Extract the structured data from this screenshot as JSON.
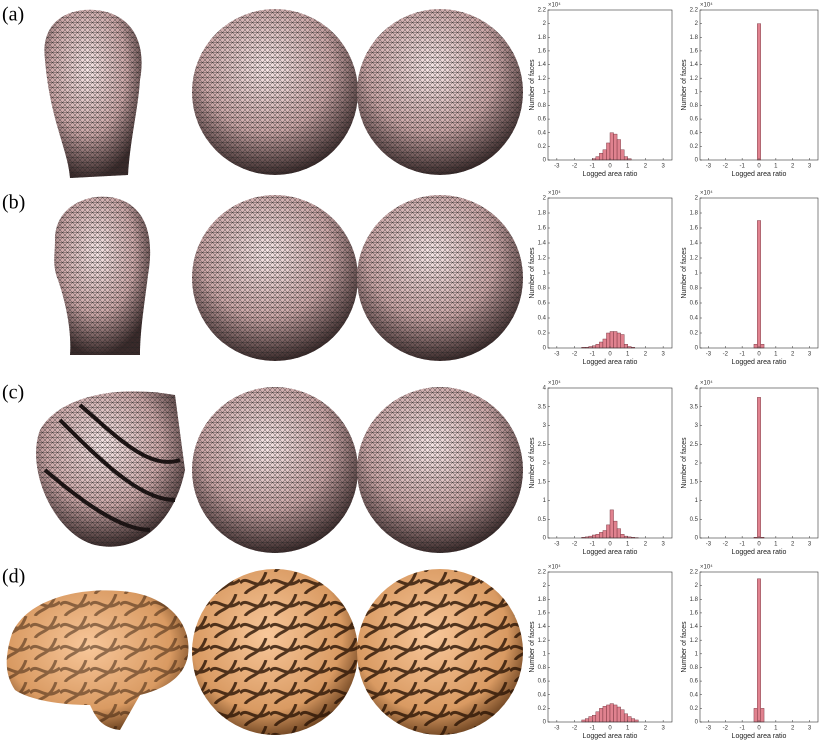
{
  "panel_labels": [
    "(a)",
    "(b)",
    "(c)",
    "(d)"
  ],
  "chart_data": [
    {
      "type": "histogram",
      "xlabel": "Logged area ratio",
      "ylabel": "Number of faces",
      "y_multiplier": "×10⁴",
      "color": "#e0828f",
      "bins": [
        -1.6,
        -1.4,
        -1.2,
        -1.0,
        -0.8,
        -0.6,
        -0.4,
        -0.2,
        0,
        0.2,
        0.4,
        0.6,
        0.8,
        1.0,
        1.2,
        1.4,
        1.6
      ],
      "counts": [
        0,
        0,
        0,
        0.02,
        0.05,
        0.1,
        0.15,
        0.25,
        0.4,
        0.38,
        0.3,
        0.15,
        0.05,
        0.02,
        0,
        0
      ],
      "xlim": [
        -3.5,
        3.5
      ],
      "xticks": [
        -3,
        -2,
        -1,
        0,
        1,
        2,
        3
      ],
      "ylim": [
        0,
        2.2
      ],
      "yticks": [
        0,
        0.2,
        0.4,
        0.6,
        0.8,
        1,
        1.2,
        1.4,
        1.6,
        1.8,
        2,
        2.2
      ]
    },
    {
      "type": "histogram",
      "xlabel": "Logged area ratio",
      "ylabel": "Number of faces",
      "y_multiplier": "×10⁴",
      "color": "#e0828f",
      "bins": [
        -0.3,
        -0.1,
        0.1,
        0.3
      ],
      "counts": [
        0,
        2.0,
        0
      ],
      "xlim": [
        -3.5,
        3.5
      ],
      "xticks": [
        -3,
        -2,
        -1,
        0,
        1,
        2,
        3
      ],
      "ylim": [
        0,
        2.2
      ],
      "yticks": [
        0,
        0.2,
        0.4,
        0.6,
        0.8,
        1,
        1.2,
        1.4,
        1.6,
        1.8,
        2,
        2.2
      ]
    },
    {
      "type": "histogram",
      "xlabel": "Logged area ratio",
      "ylabel": "Number of faces",
      "y_multiplier": "×10⁴",
      "color": "#e0828f",
      "bins": [
        -1.6,
        -1.4,
        -1.2,
        -1.0,
        -0.8,
        -0.6,
        -0.4,
        -0.2,
        0,
        0.2,
        0.4,
        0.6,
        0.8,
        1.0,
        1.2,
        1.4,
        1.6
      ],
      "counts": [
        0.01,
        0.01,
        0.02,
        0.03,
        0.05,
        0.08,
        0.12,
        0.2,
        0.22,
        0.22,
        0.2,
        0.18,
        0.05,
        0.02,
        0.01,
        0
      ],
      "xlim": [
        -3.5,
        3.5
      ],
      "xticks": [
        -3,
        -2,
        -1,
        0,
        1,
        2,
        3
      ],
      "ylim": [
        0,
        2
      ],
      "yticks": [
        0,
        0.2,
        0.4,
        0.6,
        0.8,
        1,
        1.2,
        1.4,
        1.6,
        1.8,
        2
      ]
    },
    {
      "type": "histogram",
      "xlabel": "Logged area ratio",
      "ylabel": "Number of faces",
      "y_multiplier": "×10⁴",
      "color": "#e0828f",
      "bins": [
        -0.3,
        -0.1,
        0.1,
        0.3
      ],
      "counts": [
        0.05,
        1.7,
        0.05
      ],
      "xlim": [
        -3.5,
        3.5
      ],
      "xticks": [
        -3,
        -2,
        -1,
        0,
        1,
        2,
        3
      ],
      "ylim": [
        0,
        2
      ],
      "yticks": [
        0,
        0.2,
        0.4,
        0.6,
        0.8,
        1,
        1.2,
        1.4,
        1.6,
        1.8,
        2
      ]
    },
    {
      "type": "histogram",
      "xlabel": "Logged area ratio",
      "ylabel": "Number of faces",
      "y_multiplier": "×10⁴",
      "color": "#e0828f",
      "bins": [
        -1.6,
        -1.4,
        -1.2,
        -1.0,
        -0.8,
        -0.6,
        -0.4,
        -0.2,
        0,
        0.2,
        0.4,
        0.6,
        0.8,
        1.0,
        1.2,
        1.4,
        1.6
      ],
      "counts": [
        0.02,
        0.03,
        0.05,
        0.08,
        0.1,
        0.15,
        0.2,
        0.35,
        0.75,
        0.45,
        0.25,
        0.1,
        0.05,
        0.03,
        0.02,
        0.01
      ],
      "xlim": [
        -3.5,
        3.5
      ],
      "xticks": [
        -3,
        -2,
        -1,
        0,
        1,
        2,
        3
      ],
      "ylim": [
        0,
        4
      ],
      "yticks": [
        0,
        0.5,
        1,
        1.5,
        2,
        2.5,
        3,
        3.5,
        4
      ]
    },
    {
      "type": "histogram",
      "xlabel": "Logged area ratio",
      "ylabel": "Number of faces",
      "y_multiplier": "×10⁴",
      "color": "#e0828f",
      "bins": [
        -0.3,
        -0.1,
        0.1,
        0.3
      ],
      "counts": [
        0.02,
        3.75,
        0.02
      ],
      "xlim": [
        -3.5,
        3.5
      ],
      "xticks": [
        -3,
        -2,
        -1,
        0,
        1,
        2,
        3
      ],
      "ylim": [
        0,
        4
      ],
      "yticks": [
        0,
        0.5,
        1,
        1.5,
        2,
        2.5,
        3,
        3.5,
        4
      ]
    },
    {
      "type": "histogram",
      "xlabel": "Logged area ratio",
      "ylabel": "Number of faces",
      "y_multiplier": "×10⁴",
      "color": "#e0828f",
      "bins": [
        -1.6,
        -1.4,
        -1.2,
        -1.0,
        -0.8,
        -0.6,
        -0.4,
        -0.2,
        0,
        0.2,
        0.4,
        0.6,
        0.8,
        1.0,
        1.2,
        1.4,
        1.6
      ],
      "counts": [
        0.03,
        0.05,
        0.08,
        0.1,
        0.15,
        0.2,
        0.23,
        0.25,
        0.27,
        0.25,
        0.22,
        0.18,
        0.12,
        0.08,
        0.05,
        0.03
      ],
      "xlim": [
        -3.5,
        3.5
      ],
      "xticks": [
        -3,
        -2,
        -1,
        0,
        1,
        2,
        3
      ],
      "ylim": [
        0,
        2.2
      ],
      "yticks": [
        0,
        0.2,
        0.4,
        0.6,
        0.8,
        1,
        1.2,
        1.4,
        1.6,
        1.8,
        2,
        2.2
      ]
    },
    {
      "type": "histogram",
      "xlabel": "Logged area ratio",
      "ylabel": "Number of faces",
      "y_multiplier": "×10⁴",
      "color": "#e0828f",
      "bins": [
        -0.3,
        -0.1,
        0.1,
        0.3
      ],
      "counts": [
        0.2,
        2.1,
        0.2
      ],
      "xlim": [
        -3.5,
        3.5
      ],
      "xticks": [
        -3,
        -2,
        -1,
        0,
        1,
        2,
        3
      ],
      "ylim": [
        0,
        2.2
      ],
      "yticks": [
        0,
        0.2,
        0.4,
        0.6,
        0.8,
        1,
        1.2,
        1.4,
        1.6,
        1.8,
        2,
        2.2
      ]
    }
  ]
}
